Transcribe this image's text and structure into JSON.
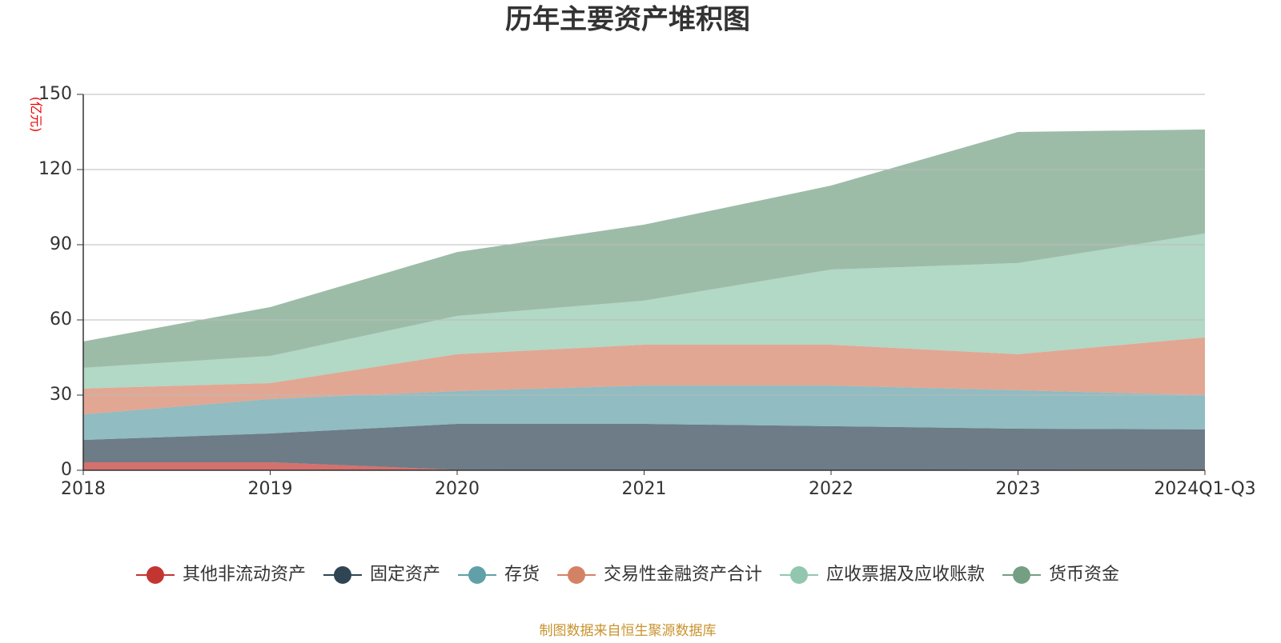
{
  "chart_data": {
    "type": "stacked-area",
    "title": "历年主要资产堆积图",
    "y_unit": "(亿元)",
    "source": "制图数据来自恒生聚源数据库",
    "categories": [
      "2018",
      "2019",
      "2020",
      "2021",
      "2022",
      "2023",
      "2024Q1-Q3"
    ],
    "ylim": [
      0,
      150
    ],
    "yticks": [
      0,
      30,
      60,
      90,
      120,
      150
    ],
    "grid": true,
    "legend": "bottom",
    "series": [
      {
        "name": "其他非流动资产",
        "color": "#c23531",
        "values": [
          3.2,
          3.2,
          0.2,
          0.1,
          0.1,
          0.2,
          0.3
        ]
      },
      {
        "name": "固定资产",
        "color": "#2f4554",
        "values": [
          8.9,
          11.5,
          18.3,
          18.4,
          17.5,
          16.4,
          16.0
        ]
      },
      {
        "name": "存货",
        "color": "#61a0a8",
        "values": [
          10.2,
          13.7,
          13.1,
          15.3,
          16.2,
          15.3,
          13.7
        ]
      },
      {
        "name": "交易性金融资产合计",
        "color": "#d48265",
        "values": [
          10.3,
          6.4,
          14.7,
          16.3,
          16.3,
          14.4,
          23.0
        ]
      },
      {
        "name": "应收票据及应收账款",
        "color": "#91c7ae",
        "values": [
          8.3,
          10.8,
          15.3,
          17.6,
          30.0,
          36.4,
          41.5
        ]
      },
      {
        "name": "货币资金",
        "color": "#749f83",
        "values": [
          10.5,
          19.5,
          25.5,
          30.3,
          33.5,
          52.3,
          41.5
        ]
      }
    ]
  }
}
